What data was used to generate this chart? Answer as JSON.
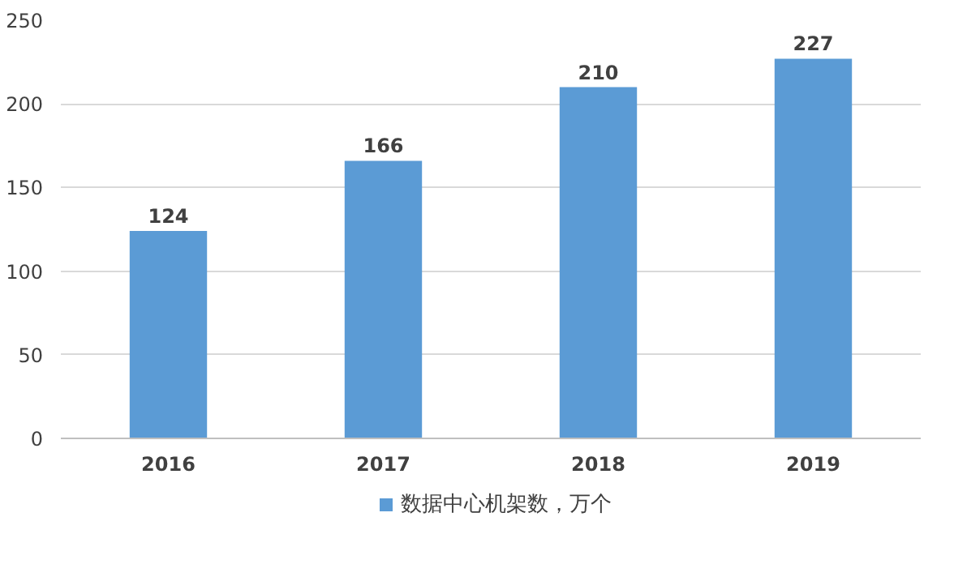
{
  "chart_data": {
    "type": "bar",
    "categories": [
      "2016",
      "2017",
      "2018",
      "2019"
    ],
    "series": [
      {
        "name": "数据中心机架数，万个",
        "color": "#5b9bd5",
        "values": [
          124,
          166,
          210,
          227
        ]
      }
    ],
    "ylim": [
      0,
      250
    ],
    "yticks": [
      0,
      50,
      100,
      150,
      200,
      250
    ],
    "grid": "y",
    "legend": "bottom",
    "data_labels": true
  }
}
